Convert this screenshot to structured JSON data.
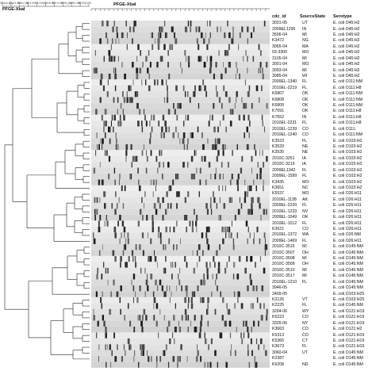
{
  "scale_note": "Dice (Opt:1.00%) (Tol 1.0%-1.0%) (H>0.0% S>0.0%) [0.0%-100.0%]",
  "method_label": "PFGE-XbaI",
  "gel_label": "PFGE-XbaI",
  "scale_ticks": [
    "50",
    "55",
    "60",
    "65",
    "70",
    "75",
    "80",
    "85",
    "90",
    "95",
    "100"
  ],
  "columns": {
    "id": "cdc_id",
    "state": "SourceState",
    "serotype": "Serotype"
  },
  "rows": [
    {
      "id": "3031-05",
      "state": "UT",
      "serotype": "E. coli O45:H2"
    },
    {
      "id": "2009EL1295",
      "state": "IN",
      "serotype": "E. coli O45:H2"
    },
    {
      "id": "3506-04",
      "state": "MI",
      "serotype": "E. coli O45:H2"
    },
    {
      "id": "K3472",
      "state": "NG",
      "serotype": "E. coli O45:H2"
    },
    {
      "id": "3065-04",
      "state": "MA",
      "serotype": "E. coli O45:H2"
    },
    {
      "id": "03-3300",
      "state": "MO",
      "serotype": "E. coli O45:H2"
    },
    {
      "id": "3105-04",
      "state": "MI",
      "serotype": "E. coli O45:H2"
    },
    {
      "id": "3001-04",
      "state": "MO",
      "serotype": "E. coli O45:H2"
    },
    {
      "id": "3093-04",
      "state": "MI",
      "serotype": "E. coli O45:H2"
    },
    {
      "id": "3085-04",
      "state": "WI",
      "serotype": "E. coli O45:H2"
    },
    {
      "id": "2009EL-1340",
      "state": "FL",
      "serotype": "E. coli O111:NM"
    },
    {
      "id": "2010EL-2219",
      "state": "FL",
      "serotype": "E. coli O111:H8"
    },
    {
      "id": "K6807",
      "state": "OK",
      "serotype": "E. coli O111:NM"
    },
    {
      "id": "K6808",
      "state": "OK",
      "serotype": "E. coli O111:NM"
    },
    {
      "id": "K6809",
      "state": "OK",
      "serotype": "E. coli O111:NM"
    },
    {
      "id": "K7091",
      "state": "OK",
      "serotype": "E. coli O111:H8"
    },
    {
      "id": "K7652",
      "state": "IN",
      "serotype": "E. coli O111:H8"
    },
    {
      "id": "2010EL-2231",
      "state": "FL",
      "serotype": "E. coli O111:H8"
    },
    {
      "id": "2010EL-1239",
      "state": "CO",
      "serotype": "E. coli O111:"
    },
    {
      "id": "2010EL-1240",
      "state": "CO",
      "serotype": "E. coli O111:NM"
    },
    {
      "id": "K3523",
      "state": "FL",
      "serotype": "E. coli O103:H2"
    },
    {
      "id": "K3529",
      "state": "NE",
      "serotype": "E. coli O103:H2"
    },
    {
      "id": "K3530",
      "state": "NE",
      "serotype": "E. coli O103:H2"
    },
    {
      "id": "2010C-3251",
      "state": "IA",
      "serotype": "E. coli O103:H2"
    },
    {
      "id": "2010C-3219",
      "state": "IA",
      "serotype": "E. coli O103:H2"
    },
    {
      "id": "2009EL1342",
      "state": "FL",
      "serotype": "E. coli O103:H2"
    },
    {
      "id": "2009EL-1599",
      "state": "FL",
      "serotype": "E. coli O103:H2"
    },
    {
      "id": "K3435",
      "state": "MO",
      "serotype": "E. coli O103:H2"
    },
    {
      "id": "K3651",
      "state": "NC",
      "serotype": "E. coli O103:H2"
    },
    {
      "id": "K5537",
      "state": "MO",
      "serotype": "E. coli O26:H11"
    },
    {
      "id": "2010EL-1138",
      "state": "AK",
      "serotype": "E. coli O26:H11"
    },
    {
      "id": "2009EL-2220",
      "state": "FL",
      "serotype": "E. coli O26:H11"
    },
    {
      "id": "2010EL-1233",
      "state": "NV",
      "serotype": "E. coli O26:H11"
    },
    {
      "id": "2009EL-1049",
      "state": "OK",
      "serotype": "E. coli O26:H11"
    },
    {
      "id": "2010EL-1012",
      "state": "FL",
      "serotype": "E. coli O26:H11"
    },
    {
      "id": "K3621",
      "state": "CO",
      "serotype": "E. coli O26:H11"
    },
    {
      "id": "2010EL-1372",
      "state": "WA",
      "serotype": "E. coli O26:NM"
    },
    {
      "id": "2009EL-1469",
      "state": "FL",
      "serotype": "E. coli O26:H11"
    },
    {
      "id": "2010C-3515",
      "state": "MI",
      "serotype": "E. coli O145:NM"
    },
    {
      "id": "2010C-3507",
      "state": "OH",
      "serotype": "E. coli O145:NM"
    },
    {
      "id": "2010C-3508",
      "state": "MI",
      "serotype": "E. coli O145:NM"
    },
    {
      "id": "2010C-3509",
      "state": "OH",
      "serotype": "E. coli O145:NM"
    },
    {
      "id": "2010C-3510",
      "state": "MI",
      "serotype": "E. coli O145:NM"
    },
    {
      "id": "2010C-3517",
      "state": "MI",
      "serotype": "E. coli O145:NM"
    },
    {
      "id": "2010EL-1210",
      "state": "FL",
      "serotype": "E. coli O145:NM"
    },
    {
      "id": "3946-05",
      "state": "",
      "serotype": "E. coli O145:NM"
    },
    {
      "id": "3409-05",
      "state": "",
      "serotype": "E. coli O103:H25"
    },
    {
      "id": "K2126",
      "state": "VT",
      "serotype": "E. coli O103:H25"
    },
    {
      "id": "K2225",
      "state": "FL",
      "serotype": "E. coli O145:NM"
    },
    {
      "id": "3294-06",
      "state": "WY",
      "serotype": "E. coli O121:H19"
    },
    {
      "id": "K5223",
      "state": "CO",
      "serotype": "E. coli O121:H19"
    },
    {
      "id": "3326-06",
      "state": "NY",
      "serotype": "E. coli O121:H19"
    },
    {
      "id": "K3663",
      "state": "CO",
      "serotype": "E. coli O121:H2"
    },
    {
      "id": "K5313",
      "state": "CO",
      "serotype": "E. coli O121:H19"
    },
    {
      "id": "K5365",
      "state": "CT",
      "serotype": "E. coli O121:H19"
    },
    {
      "id": "K3673",
      "state": "FL",
      "serotype": "E. coli O121:H19"
    },
    {
      "id": "3060-04",
      "state": "UT",
      "serotype": "E. coli O145:NM"
    },
    {
      "id": "K2387",
      "state": "",
      "serotype": "E. coli O145:NM"
    },
    {
      "id": "K6208",
      "state": "ND",
      "serotype": "E. coli O145:NM"
    }
  ]
}
